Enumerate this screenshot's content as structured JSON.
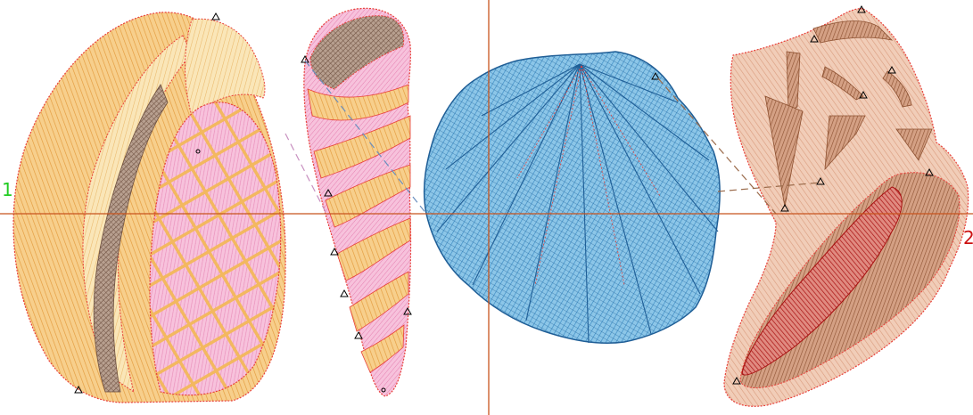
{
  "canvas": {
    "background": "#ffffff",
    "axis_color": "#c8541e"
  },
  "labels": {
    "start_marker": "1",
    "end_marker": "2",
    "start_color": "#22cc22",
    "end_color": "#cc1111"
  },
  "palette": {
    "shell_orange": "#f0a848",
    "shell_cream": "#f4d9a0",
    "shell_pink": "#f2a9cc",
    "shell_brown": "#8a6f5e",
    "scallop_blue": "#4fa6d8",
    "scallop_dark": "#1f5e96",
    "conch_tan": "#e2a98a",
    "conch_brown": "#9a5e3c",
    "conch_red": "#b01515",
    "stitch_red": "#e8403a",
    "jump_line": "#9a6a4a"
  },
  "objects": [
    {
      "name": "cowrie-shell",
      "icon": "cowrie-shell-icon"
    },
    {
      "name": "auger-shell",
      "icon": "auger-shell-icon"
    },
    {
      "name": "scallop-shell",
      "icon": "scallop-shell-icon"
    },
    {
      "name": "conch-shell",
      "icon": "conch-shell-icon"
    }
  ]
}
